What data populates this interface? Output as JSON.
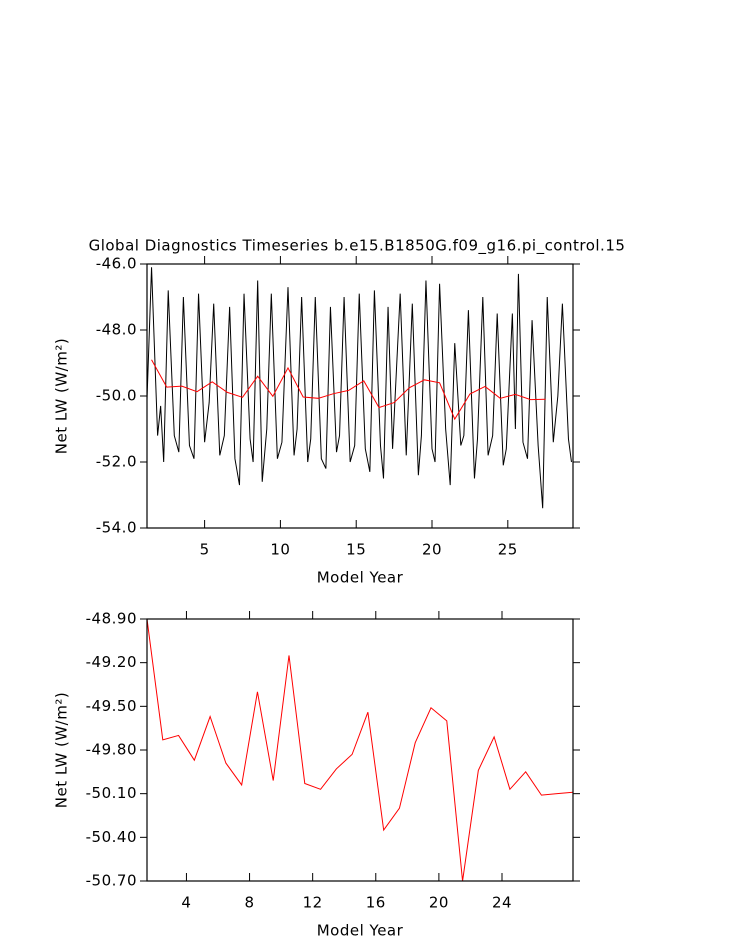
{
  "chart_data": [
    {
      "type": "line",
      "title": "Global Diagnostics Timeseries b.e15.B1850G.f09_g16.pi_control.15",
      "xlabel": "Model Year",
      "ylabel": "Net LW (W/m²)",
      "xlim": [
        1.2,
        29.3
      ],
      "ylim": [
        -54,
        -46
      ],
      "xticks": [
        5,
        10,
        15,
        20,
        25
      ],
      "yticks": [
        {
          "value": -54,
          "label": "-54.0"
        },
        {
          "value": -52,
          "label": "-52.0"
        },
        {
          "value": -50,
          "label": "-50.0"
        },
        {
          "value": -48,
          "label": "-48.0"
        },
        {
          "value": -46,
          "label": "-46.0"
        }
      ],
      "series": [
        {
          "color": "#000000",
          "x": [
            1.2,
            1.5,
            1.9,
            2.1,
            2.3,
            2.6,
            3.0,
            3.3,
            3.6,
            4.0,
            4.3,
            4.6,
            5.0,
            5.3,
            5.6,
            6.0,
            6.3,
            6.65,
            7.0,
            7.3,
            7.6,
            8.0,
            8.2,
            8.5,
            8.8,
            9.1,
            9.4,
            9.8,
            10.1,
            10.5,
            10.9,
            11.1,
            11.4,
            11.8,
            12.0,
            12.3,
            12.7,
            13.0,
            13.3,
            13.7,
            13.9,
            14.2,
            14.6,
            14.9,
            15.2,
            15.6,
            15.9,
            16.2,
            16.6,
            16.8,
            17.1,
            17.4,
            17.9,
            18.3,
            18.7,
            19.1,
            19.3,
            19.6,
            20.0,
            20.2,
            20.5,
            20.9,
            21.2,
            21.5,
            21.9,
            22.1,
            22.4,
            22.8,
            23.0,
            23.35,
            23.7,
            24.0,
            24.3,
            24.7,
            24.9,
            25.3,
            25.5,
            25.7,
            26.0,
            26.3,
            26.6,
            27.0,
            27.3,
            27.6,
            28.0,
            28.3,
            28.6,
            29.0,
            29.2
          ],
          "values": [
            -50.1,
            -46.1,
            -51.2,
            -50.3,
            -52.0,
            -46.8,
            -51.2,
            -51.7,
            -47.0,
            -51.5,
            -51.9,
            -46.9,
            -51.4,
            -50.2,
            -47.2,
            -51.8,
            -51.2,
            -47.3,
            -51.9,
            -52.7,
            -46.9,
            -51.3,
            -52.0,
            -46.5,
            -52.6,
            -51.0,
            -46.9,
            -51.9,
            -51.4,
            -46.7,
            -51.8,
            -51.0,
            -47.0,
            -52.0,
            -51.3,
            -47.0,
            -51.9,
            -52.2,
            -47.3,
            -51.7,
            -51.2,
            -47.0,
            -52.0,
            -51.5,
            -46.9,
            -51.6,
            -52.3,
            -46.8,
            -51.5,
            -52.5,
            -47.3,
            -51.6,
            -46.9,
            -51.8,
            -47.2,
            -52.4,
            -51.2,
            -46.5,
            -51.6,
            -52.0,
            -46.6,
            -51.0,
            -52.7,
            -48.4,
            -51.5,
            -51.2,
            -47.4,
            -52.5,
            -51.3,
            -47.0,
            -51.8,
            -51.2,
            -47.5,
            -52.1,
            -51.6,
            -47.5,
            -51.0,
            -46.3,
            -51.4,
            -51.9,
            -47.7,
            -51.5,
            -53.4,
            -47.0,
            -51.4,
            -50.0,
            -47.2,
            -51.3,
            -52.0
          ]
        },
        {
          "color": "#ff0000",
          "x": [
            1.5,
            2.5,
            3.5,
            4.5,
            5.5,
            6.5,
            7.5,
            8.5,
            9.5,
            10.5,
            11.5,
            12.5,
            13.5,
            14.5,
            15.5,
            16.5,
            17.5,
            18.5,
            19.5,
            20.5,
            21.5,
            22.5,
            23.5,
            24.5,
            25.5,
            26.5,
            27.5
          ],
          "values": [
            -48.9,
            -49.73,
            -49.7,
            -49.87,
            -49.57,
            -49.89,
            -50.04,
            -49.4,
            -50.01,
            -49.15,
            -50.03,
            -50.07,
            -49.93,
            -49.83,
            -49.54,
            -50.35,
            -50.2,
            -49.75,
            -49.51,
            -49.6,
            -50.7,
            -49.94,
            -49.71,
            -50.07,
            -49.95,
            -50.11,
            -50.1
          ]
        }
      ]
    },
    {
      "type": "line",
      "xlabel": "Model Year",
      "ylabel": "Net LW (W/m²)",
      "xlim": [
        1.5,
        28.5
      ],
      "ylim": [
        -50.7,
        -48.9
      ],
      "xticks": [
        4,
        8,
        12,
        16,
        20,
        24
      ],
      "yticks": [
        {
          "value": -50.7,
          "label": "-50.70"
        },
        {
          "value": -50.4,
          "label": "-50.40"
        },
        {
          "value": -50.1,
          "label": "-50.10"
        },
        {
          "value": -49.8,
          "label": "-49.80"
        },
        {
          "value": -49.5,
          "label": "-49.50"
        },
        {
          "value": -49.2,
          "label": "-49.20"
        },
        {
          "value": -48.9,
          "label": "-48.90"
        }
      ],
      "series": [
        {
          "color": "#ff0000",
          "x": [
            1.5,
            2.5,
            3.5,
            4.5,
            5.5,
            6.5,
            7.5,
            8.5,
            9.5,
            10.5,
            11.5,
            12.5,
            13.5,
            14.5,
            15.5,
            16.5,
            17.5,
            18.5,
            19.5,
            20.5,
            21.5,
            22.5,
            23.5,
            24.5,
            25.5,
            26.5,
            27.5,
            28.5
          ],
          "values": [
            -48.9,
            -49.73,
            -49.7,
            -49.87,
            -49.57,
            -49.89,
            -50.04,
            -49.4,
            -50.01,
            -49.15,
            -50.03,
            -50.07,
            -49.93,
            -49.83,
            -49.54,
            -50.35,
            -50.2,
            -49.75,
            -49.51,
            -49.6,
            -50.7,
            -49.94,
            -49.71,
            -50.07,
            -49.95,
            -50.11,
            -50.1,
            -50.09
          ]
        }
      ]
    }
  ]
}
